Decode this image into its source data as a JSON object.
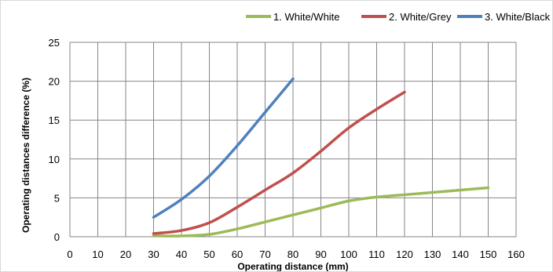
{
  "chart_data": {
    "type": "line",
    "xlabel": "Operating distance (mm)",
    "ylabel": "Operating distances difference (%)",
    "xlim": [
      0,
      160
    ],
    "ylim": [
      0,
      25
    ],
    "xticks": [
      0,
      10,
      20,
      30,
      40,
      50,
      60,
      70,
      80,
      90,
      100,
      110,
      120,
      130,
      140,
      150,
      160
    ],
    "yticks": [
      0,
      5,
      10,
      15,
      20,
      25
    ],
    "grid": true,
    "legend_position": "top-right",
    "series": [
      {
        "name": "1. White/White",
        "color": "#9bbb59",
        "x": [
          30,
          40,
          50,
          60,
          70,
          80,
          90,
          100,
          110,
          120,
          130,
          140,
          150
        ],
        "y": [
          0.1,
          0.1,
          0.3,
          1.0,
          1.9,
          2.8,
          3.7,
          4.6,
          5.1,
          5.4,
          5.7,
          6.0,
          6.3
        ]
      },
      {
        "name": "2. White/Grey",
        "color": "#c0504d",
        "x": [
          30,
          40,
          50,
          60,
          70,
          80,
          90,
          100,
          110,
          120
        ],
        "y": [
          0.4,
          0.8,
          1.8,
          3.8,
          6.0,
          8.2,
          11.0,
          14.0,
          16.4,
          18.6
        ]
      },
      {
        "name": "3. White/Black",
        "color": "#4f81bd",
        "x": [
          30,
          40,
          50,
          60,
          70,
          80
        ],
        "y": [
          2.5,
          4.8,
          7.8,
          11.7,
          16.0,
          20.3
        ]
      }
    ]
  }
}
